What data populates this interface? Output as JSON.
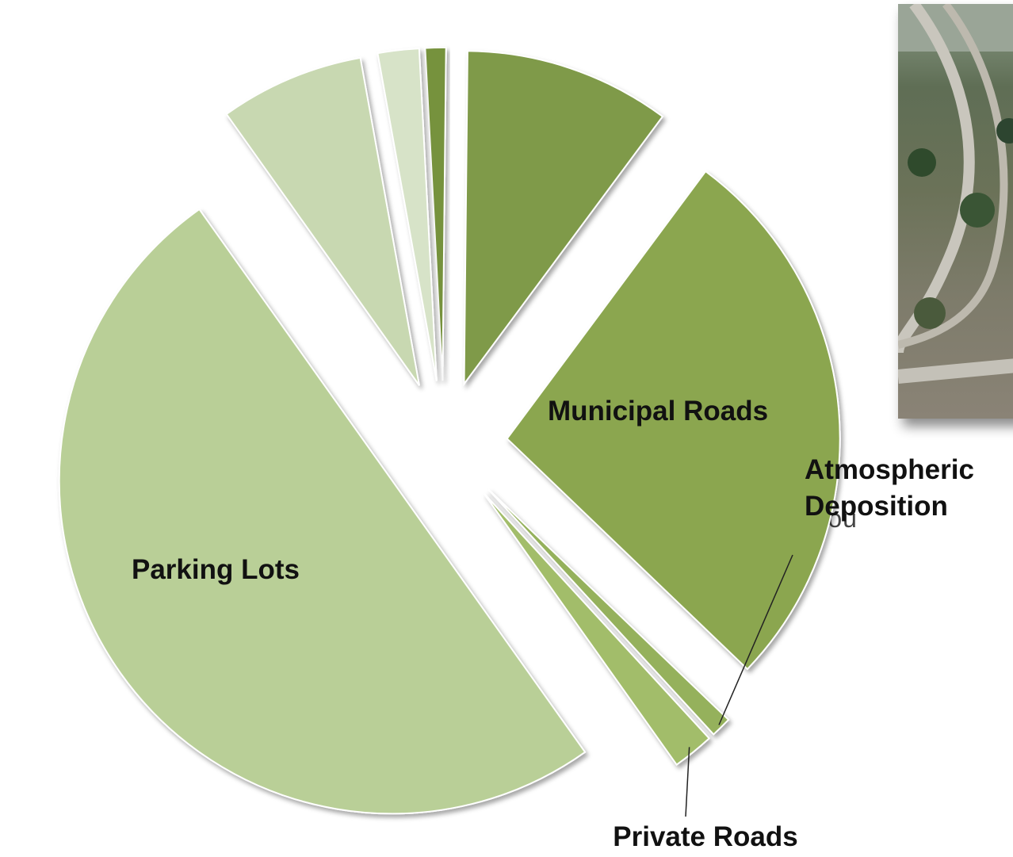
{
  "chart_data": {
    "type": "pie",
    "categories": [
      null,
      null,
      "Municipal Roads",
      "Atmospheric Deposition",
      "Private Roads",
      "Parking Lots",
      null,
      null
    ],
    "values": [
      1,
      10,
      27,
      1,
      2,
      50,
      7,
      2
    ],
    "colors": [
      "#76923c",
      "#7f9a48",
      "#8ba650",
      "#95b15c",
      "#a2bd6a",
      "#b9cf97",
      "#c8d8b1",
      "#d7e3c8"
    ],
    "start_angle": -3,
    "exploded": true
  },
  "source_text": "Sou"
}
